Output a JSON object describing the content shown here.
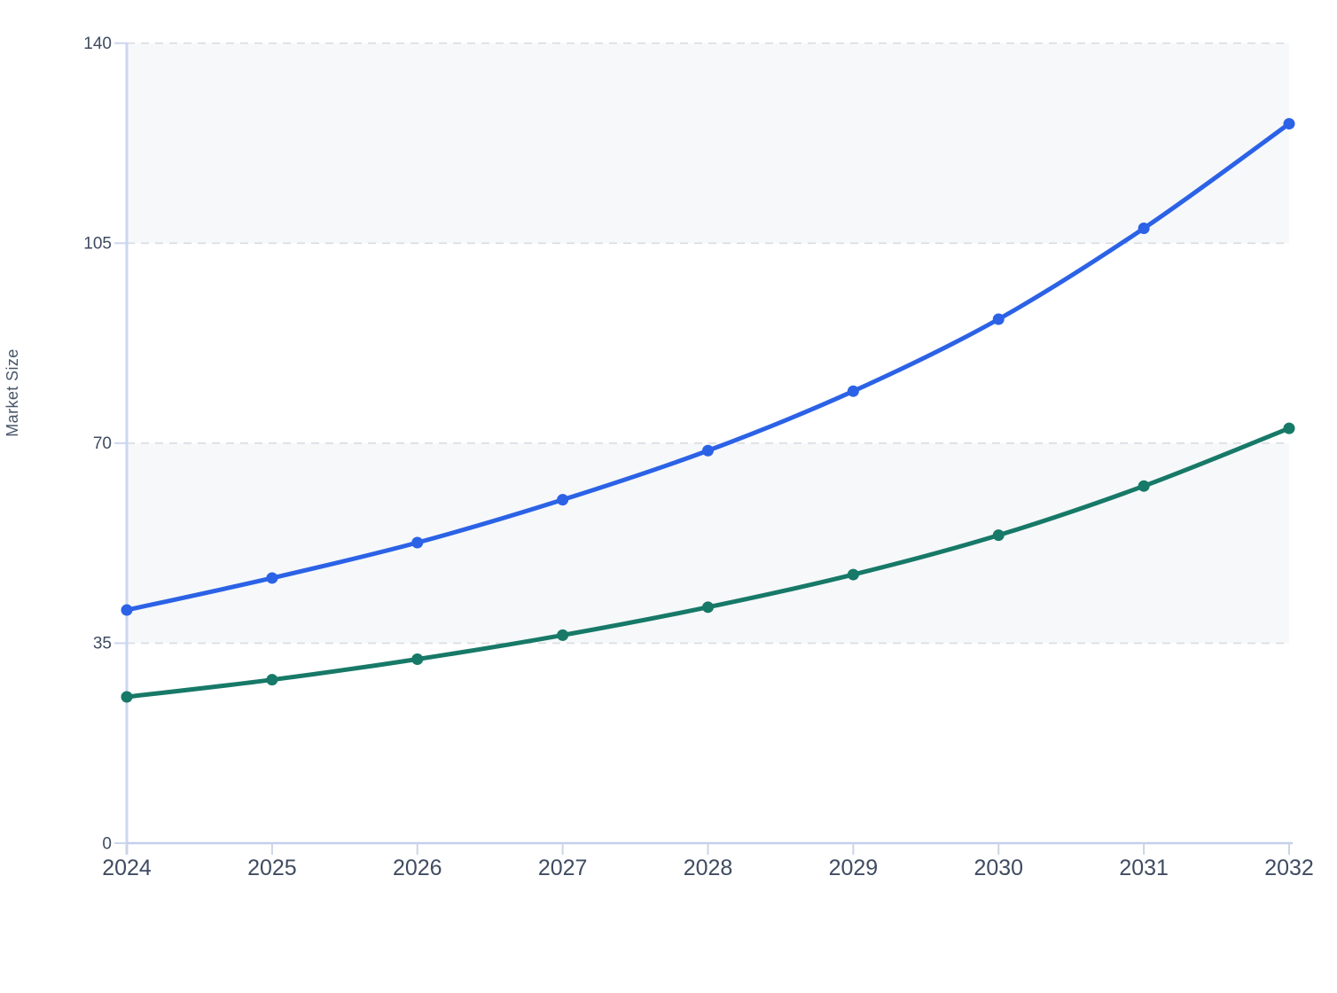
{
  "chart_data": {
    "type": "line",
    "title": "",
    "ylabel": "Market Size",
    "xlabel": "",
    "x_labels": [
      "2024",
      "2025",
      "2026",
      "2027",
      "2028",
      "2029",
      "2030",
      "2031",
      "2032"
    ],
    "yticks": [
      0,
      35,
      70,
      105,
      140
    ],
    "ylim": [
      0,
      140
    ],
    "grid": "horizontal-dashed",
    "legend_position": "none",
    "shaded_bands": [
      [
        35,
        70
      ],
      [
        105,
        140
      ]
    ],
    "series": [
      {
        "name": "blue-series",
        "color": "#2b62e6",
        "values": [
          40.8,
          46.4,
          52.6,
          60.1,
          68.7,
          79.1,
          91.7,
          107.6,
          125.9
        ]
      },
      {
        "name": "green-series",
        "color": "#177968",
        "values": [
          25.6,
          28.6,
          32.2,
          36.4,
          41.3,
          47.0,
          53.9,
          62.5,
          72.6
        ]
      }
    ],
    "colors": {
      "band_fill": "#f6f8fa",
      "gridline": "#d9dce2",
      "y_axis_line": "#ccd6f0",
      "x_axis_line": "#c5cfec",
      "y_tick": "#ccd6f0",
      "x_tick": "#ccd4e4"
    }
  }
}
